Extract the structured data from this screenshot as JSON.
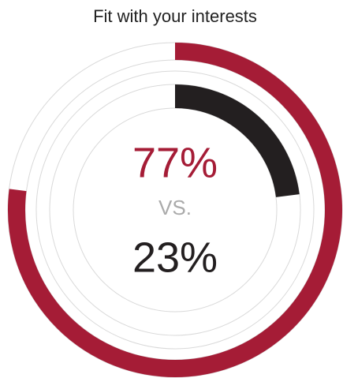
{
  "chart_data": {
    "type": "radial",
    "title": "Fit with your interests",
    "values": [
      77,
      23
    ],
    "value_labels": [
      "77%",
      "23%"
    ],
    "colors": [
      "#a51c36",
      "#231f20"
    ],
    "separator": "VS.",
    "ylim": [
      0,
      100
    ]
  }
}
